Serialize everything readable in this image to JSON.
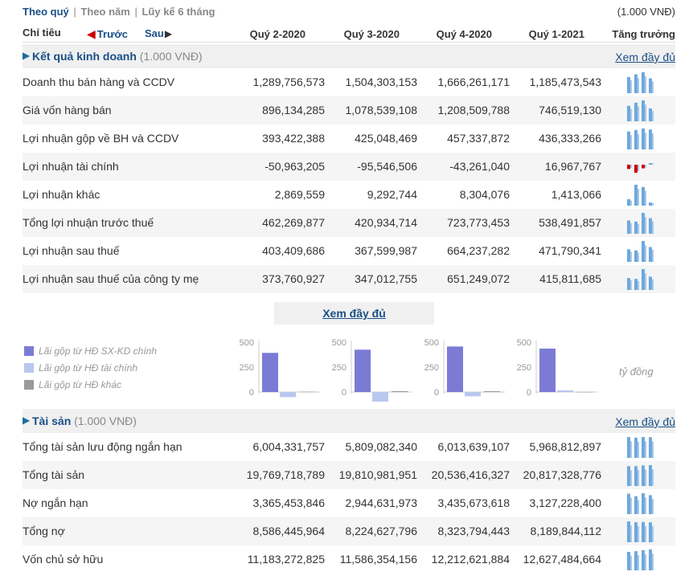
{
  "tabs": {
    "quarter": "Theo quý",
    "year": "Theo năm",
    "cumulative": "Lũy kế 6 tháng",
    "sep": "|"
  },
  "unit_note": "(1.000 VNĐ)",
  "header": {
    "label": "Chỉ tiêu",
    "prev": "Trước",
    "next": "Sau",
    "cols": [
      "Quý 2-2020",
      "Quý 3-2020",
      "Quý 4-2020",
      "Quý 1-2021"
    ],
    "growth": "Tăng trưởng"
  },
  "section1": {
    "title": "Kết quả kinh doanh",
    "unit": "(1.000 VNĐ)",
    "more": "Xem đầy đủ"
  },
  "income_rows": [
    {
      "label": "Doanh thu bán hàng và CCDV",
      "values": [
        "1,289,756,573",
        "1,504,303,153",
        "1,666,261,171",
        "1,185,473,543"
      ],
      "nums": [
        1289756573,
        1504303153,
        1666261171,
        1185473543
      ]
    },
    {
      "label": "Giá vốn hàng bán",
      "values": [
        "896,134,285",
        "1,078,539,108",
        "1,208,509,788",
        "746,519,130"
      ],
      "nums": [
        896134285,
        1078539108,
        1208509788,
        746519130
      ]
    },
    {
      "label": "Lợi nhuận gộp về BH và CCDV",
      "values": [
        "393,422,388",
        "425,048,469",
        "457,337,872",
        "436,333,266"
      ],
      "nums": [
        393422388,
        425048469,
        457337872,
        436333266
      ]
    },
    {
      "label": "Lợi nhuận tài chính",
      "values": [
        "-50,963,205",
        "-95,546,506",
        "-43,261,040",
        "16,967,767"
      ],
      "nums": [
        -50963205,
        -95546506,
        -43261040,
        16967767
      ]
    },
    {
      "label": "Lợi nhuận khác",
      "values": [
        "2,869,559",
        "9,292,744",
        "8,304,076",
        "1,413,066"
      ],
      "nums": [
        2869559,
        9292744,
        8304076,
        1413066
      ]
    },
    {
      "label": "Tổng lợi nhuận trước thuế",
      "values": [
        "462,269,877",
        "420,934,714",
        "723,773,453",
        "538,491,857"
      ],
      "nums": [
        462269877,
        420934714,
        723773453,
        538491857
      ]
    },
    {
      "label": "Lợi nhuận sau thuế",
      "values": [
        "403,409,686",
        "367,599,987",
        "664,237,282",
        "471,790,341"
      ],
      "nums": [
        403409686,
        367599987,
        664237282,
        471790341
      ]
    },
    {
      "label": "Lợi nhuận sau thuế của công ty mẹ",
      "values": [
        "373,760,927",
        "347,012,755",
        "651,249,072",
        "415,811,685"
      ],
      "nums": [
        373760927,
        347012755,
        651249072,
        415811685
      ]
    }
  ],
  "center_more": "Xem đầy đủ",
  "legend": [
    {
      "label": "Lãi gộp từ HĐ SX-KD chính",
      "color": "#7b7bd6"
    },
    {
      "label": "Lãi gộp từ HĐ tài chính",
      "color": "#b8c8ee"
    },
    {
      "label": "Lãi gộp từ HĐ khác",
      "color": "#999999"
    }
  ],
  "chart_unit": "tỷ đồng",
  "chart_data": [
    {
      "type": "bar",
      "yticks": [
        "500",
        "250",
        "0"
      ],
      "ylim": [
        -100,
        500
      ],
      "values": [
        393,
        -51,
        3
      ]
    },
    {
      "type": "bar",
      "yticks": [
        "500",
        "250",
        "0"
      ],
      "ylim": [
        -100,
        500
      ],
      "values": [
        425,
        -96,
        9
      ]
    },
    {
      "type": "bar",
      "yticks": [
        "500",
        "250",
        "0"
      ],
      "ylim": [
        -100,
        500
      ],
      "values": [
        457,
        -43,
        8
      ]
    },
    {
      "type": "bar",
      "yticks": [
        "500",
        "250",
        "0"
      ],
      "ylim": [
        -100,
        500
      ],
      "values": [
        436,
        17,
        1
      ]
    }
  ],
  "section2": {
    "title": "Tài sản",
    "unit": "(1.000 VNĐ)",
    "more": "Xem đầy đủ"
  },
  "asset_rows": [
    {
      "label": "Tổng tài sản lưu động ngắn hạn",
      "values": [
        "6,004,331,757",
        "5,809,082,340",
        "6,013,639,107",
        "5,968,812,897"
      ],
      "nums": [
        6004331757,
        5809082340,
        6013639107,
        5968812897
      ]
    },
    {
      "label": "Tổng tài sản",
      "values": [
        "19,769,718,789",
        "19,810,981,951",
        "20,536,416,327",
        "20,817,328,776"
      ],
      "nums": [
        19769718789,
        19810981951,
        20536416327,
        20817328776
      ]
    },
    {
      "label": "Nợ ngắn hạn",
      "values": [
        "3,365,453,846",
        "2,944,631,973",
        "3,435,673,618",
        "3,127,228,400"
      ],
      "nums": [
        3365453846,
        2944631973,
        3435673618,
        3127228400
      ]
    },
    {
      "label": "Tổng nợ",
      "values": [
        "8,586,445,964",
        "8,224,627,796",
        "8,323,794,443",
        "8,189,844,112"
      ],
      "nums": [
        8586445964,
        8224627796,
        8323794443,
        8189844112
      ]
    },
    {
      "label": "Vốn chủ sở hữu",
      "values": [
        "11,183,272,825",
        "11,586,354,156",
        "12,212,621,884",
        "12,627,484,664"
      ],
      "nums": [
        11183272825,
        11586354156,
        12212621884,
        12627484664
      ]
    }
  ],
  "colors": {
    "link": "#1a4f86",
    "spark_pos": "#6fa8dc",
    "spark_neg": "#cc0000",
    "spark_pos_light": "#a8c8ea"
  }
}
